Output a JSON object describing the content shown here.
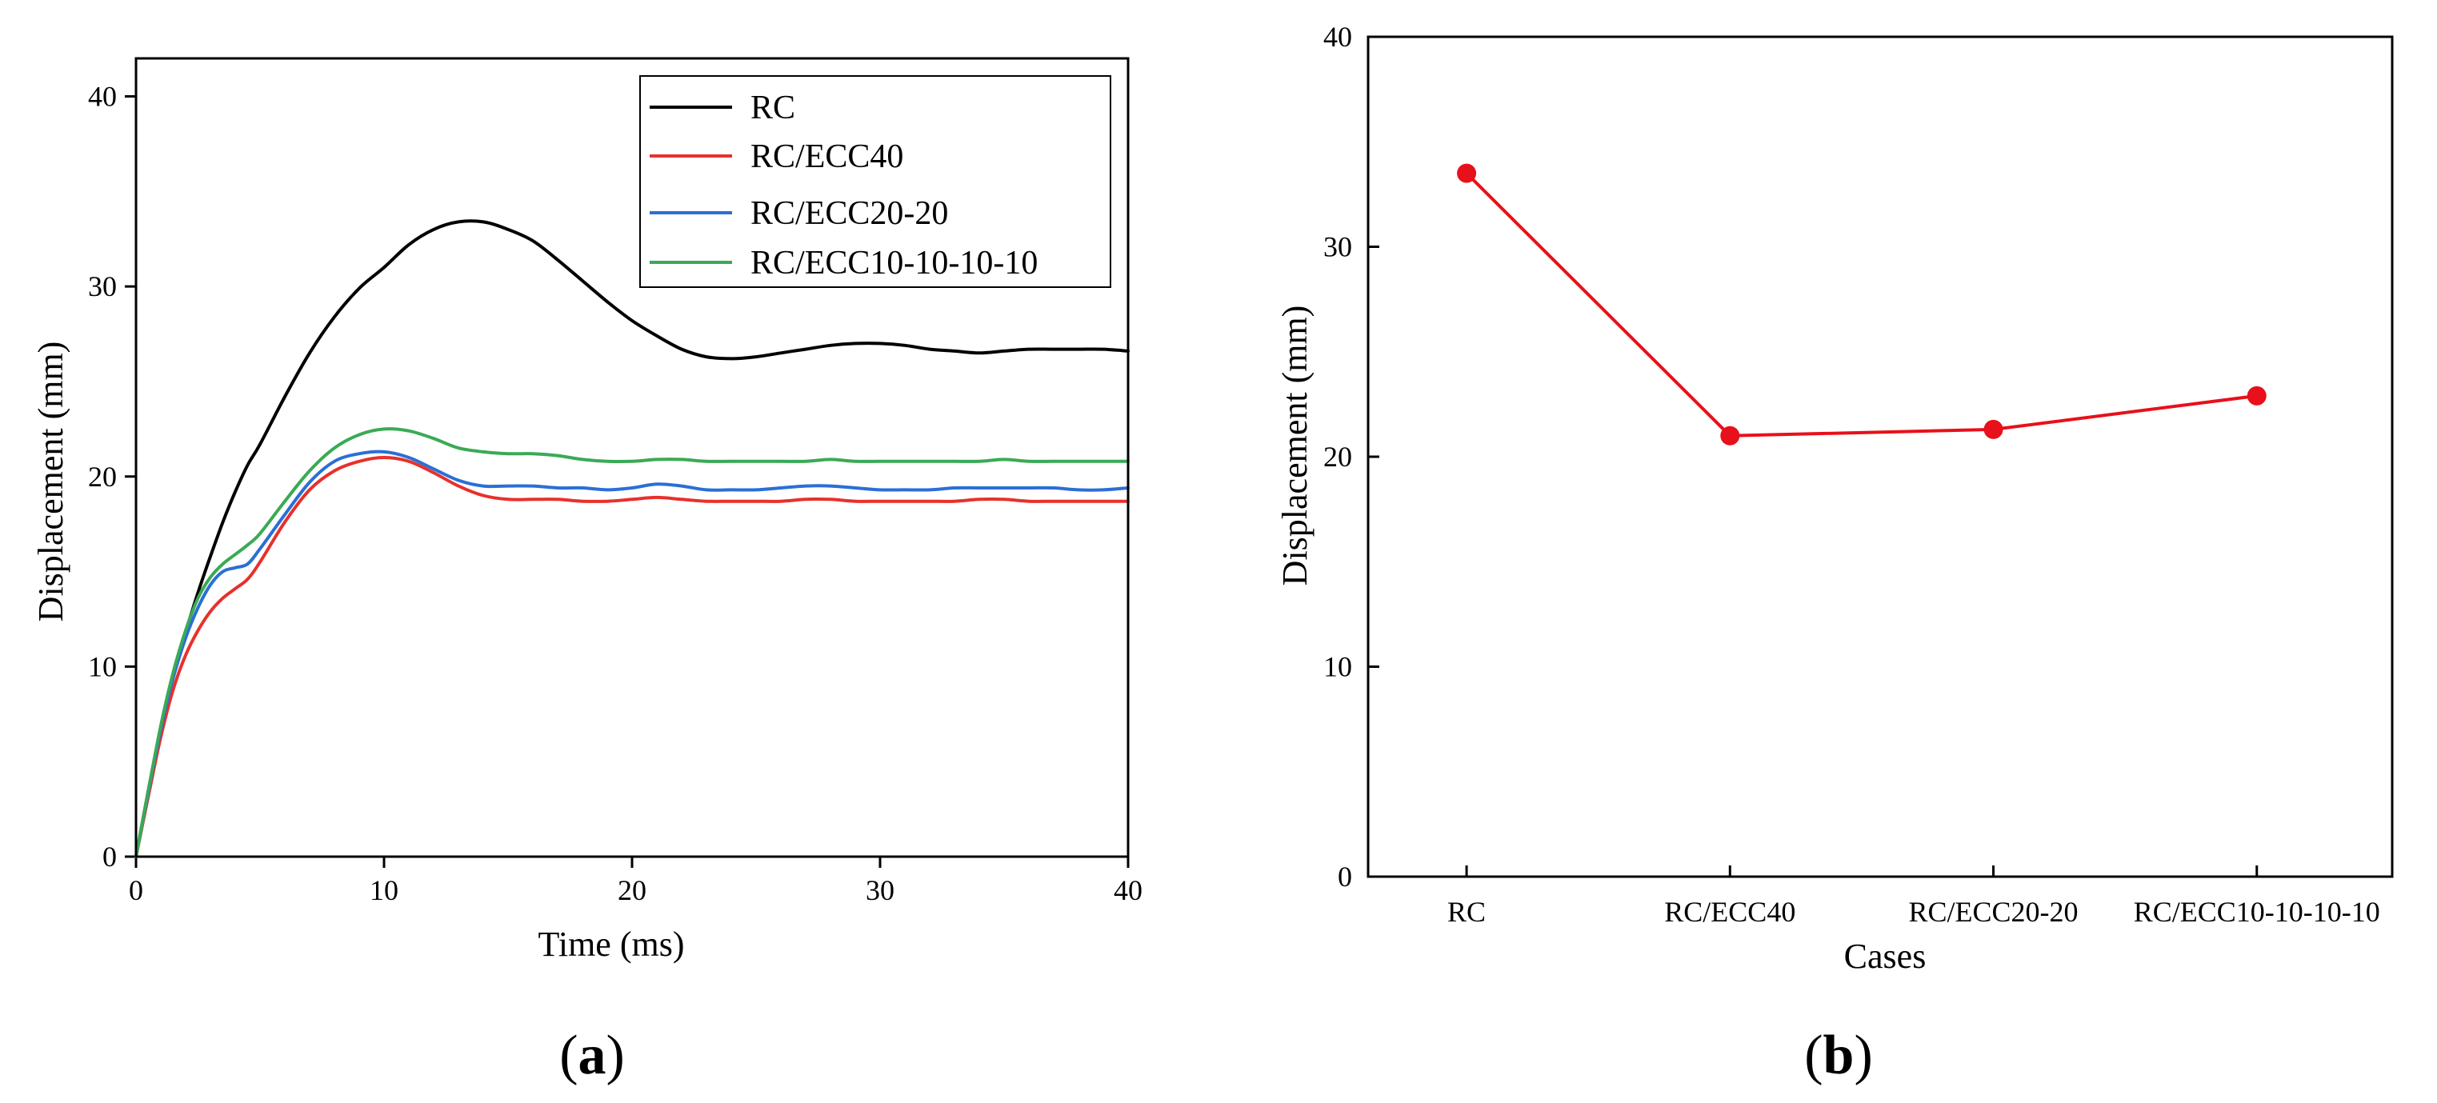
{
  "colors": {
    "RC": "#000000",
    "RC/ECC40": "#e8302c",
    "RC/ECC20-20": "#2a6fd6",
    "RC/ECC10-10-10-10": "#3aaa55",
    "marker": "#e8101a"
  },
  "panel_labels": {
    "a": {
      "open": "(",
      "letter": "a",
      "close": ")"
    },
    "b": {
      "open": "(",
      "letter": "b",
      "close": ")"
    }
  },
  "chart_data": [
    {
      "id": "a",
      "type": "line",
      "title": "",
      "xlabel": "Time (ms)",
      "ylabel": "Displacement (mm)",
      "xlim": [
        0,
        40
      ],
      "ylim": [
        0,
        42
      ],
      "xticks": [
        0,
        10,
        20,
        30,
        40
      ],
      "yticks": [
        0,
        10,
        20,
        30,
        40
      ],
      "grid": false,
      "legend_position": "top-right",
      "series": [
        {
          "name": "RC",
          "x": [
            0,
            0.5,
            1,
            1.5,
            2,
            2.5,
            3,
            3.5,
            4,
            4.5,
            5,
            6,
            7,
            8,
            9,
            10,
            11,
            12,
            13,
            14,
            15,
            16,
            17,
            18,
            19,
            20,
            21,
            22,
            23,
            24,
            25,
            26,
            27,
            28,
            29,
            30,
            31,
            32,
            33,
            34,
            35,
            36,
            37,
            38,
            39,
            40
          ],
          "y": [
            0,
            3.5,
            6.8,
            9.5,
            11.8,
            13.9,
            15.8,
            17.6,
            19.2,
            20.6,
            21.7,
            24.2,
            26.5,
            28.4,
            29.9,
            31.0,
            32.2,
            33.0,
            33.4,
            33.4,
            33.0,
            32.4,
            31.4,
            30.3,
            29.2,
            28.2,
            27.4,
            26.7,
            26.3,
            26.2,
            26.3,
            26.5,
            26.7,
            26.9,
            27.0,
            27.0,
            26.9,
            26.7,
            26.6,
            26.5,
            26.6,
            26.7,
            26.7,
            26.7,
            26.7,
            26.6
          ]
        },
        {
          "name": "RC/ECC40",
          "x": [
            0,
            0.5,
            1,
            1.5,
            2,
            2.5,
            3,
            3.5,
            4,
            4.5,
            5,
            6,
            7,
            8,
            9,
            10,
            11,
            12,
            13,
            14,
            15,
            16,
            17,
            18,
            19,
            20,
            21,
            22,
            23,
            24,
            25,
            26,
            27,
            28,
            29,
            30,
            31,
            32,
            33,
            34,
            35,
            36,
            37,
            38,
            39,
            40
          ],
          "y": [
            0,
            3.2,
            6.3,
            8.8,
            10.6,
            11.9,
            12.9,
            13.6,
            14.1,
            14.6,
            15.5,
            17.6,
            19.3,
            20.3,
            20.8,
            21.0,
            20.8,
            20.2,
            19.5,
            19.0,
            18.8,
            18.8,
            18.8,
            18.7,
            18.7,
            18.8,
            18.9,
            18.8,
            18.7,
            18.7,
            18.7,
            18.7,
            18.8,
            18.8,
            18.7,
            18.7,
            18.7,
            18.7,
            18.7,
            18.8,
            18.8,
            18.7,
            18.7,
            18.7,
            18.7,
            18.7
          ]
        },
        {
          "name": "RC/ECC20-20",
          "x": [
            0,
            0.5,
            1,
            1.5,
            2,
            2.5,
            3,
            3.5,
            4,
            4.5,
            5,
            6,
            7,
            8,
            9,
            10,
            11,
            12,
            13,
            14,
            15,
            16,
            17,
            18,
            19,
            20,
            21,
            22,
            23,
            24,
            25,
            26,
            27,
            28,
            29,
            30,
            31,
            32,
            33,
            34,
            35,
            36,
            37,
            38,
            39,
            40
          ],
          "y": [
            0,
            3.4,
            6.7,
            9.4,
            11.5,
            13.1,
            14.3,
            15.0,
            15.2,
            15.4,
            16.2,
            18.0,
            19.7,
            20.8,
            21.2,
            21.3,
            21.0,
            20.4,
            19.8,
            19.5,
            19.5,
            19.5,
            19.4,
            19.4,
            19.3,
            19.4,
            19.6,
            19.5,
            19.3,
            19.3,
            19.3,
            19.4,
            19.5,
            19.5,
            19.4,
            19.3,
            19.3,
            19.3,
            19.4,
            19.4,
            19.4,
            19.4,
            19.4,
            19.3,
            19.3,
            19.4
          ]
        },
        {
          "name": "RC/ECC10-10-10-10",
          "x": [
            0,
            0.5,
            1,
            1.5,
            2,
            2.5,
            3,
            3.5,
            4,
            4.5,
            5,
            6,
            7,
            8,
            9,
            10,
            11,
            12,
            13,
            14,
            15,
            16,
            17,
            18,
            19,
            20,
            21,
            22,
            23,
            24,
            25,
            26,
            27,
            28,
            29,
            30,
            31,
            32,
            33,
            34,
            35,
            36,
            37,
            38,
            39,
            40
          ],
          "y": [
            0,
            3.5,
            6.9,
            9.7,
            11.9,
            13.6,
            14.7,
            15.4,
            15.9,
            16.4,
            17.0,
            18.7,
            20.3,
            21.5,
            22.2,
            22.5,
            22.4,
            22.0,
            21.5,
            21.3,
            21.2,
            21.2,
            21.1,
            20.9,
            20.8,
            20.8,
            20.9,
            20.9,
            20.8,
            20.8,
            20.8,
            20.8,
            20.8,
            20.9,
            20.8,
            20.8,
            20.8,
            20.8,
            20.8,
            20.8,
            20.9,
            20.8,
            20.8,
            20.8,
            20.8,
            20.8
          ]
        }
      ]
    },
    {
      "id": "b",
      "type": "line",
      "title": "",
      "xlabel": "Cases",
      "ylabel": "Displacement (mm)",
      "ylim": [
        0,
        40
      ],
      "yticks": [
        0,
        10,
        20,
        30,
        40
      ],
      "grid": false,
      "markers": true,
      "categories": [
        "RC",
        "RC/ECC40",
        "RC/ECC20-20",
        "RC/ECC10-10-10-10"
      ],
      "values": [
        33.5,
        21.0,
        21.3,
        22.9
      ]
    }
  ]
}
